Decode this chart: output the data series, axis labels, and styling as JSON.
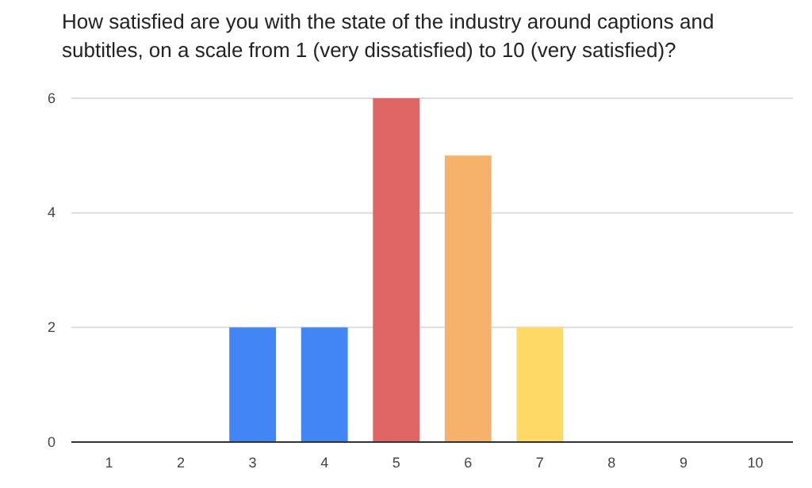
{
  "chart_data": {
    "type": "bar",
    "title": "How satisfied are you with the state of the industry around captions and subtitles, on a scale from 1 (very dissatisfied) to 10 (very satisfied)?",
    "categories": [
      "1",
      "2",
      "3",
      "4",
      "5",
      "6",
      "7",
      "8",
      "9",
      "10"
    ],
    "values": [
      0,
      0,
      2,
      2,
      6,
      5,
      2,
      0,
      0,
      0
    ],
    "colors": [
      "#4285f4",
      "#4285f4",
      "#4285f4",
      "#4285f4",
      "#e06666",
      "#f6b26b",
      "#ffd966",
      "#ffd966",
      "#ffd966",
      "#ffd966"
    ],
    "ylim": [
      0,
      6
    ],
    "yticks": [
      0,
      2,
      4,
      6
    ],
    "grid": "y"
  }
}
